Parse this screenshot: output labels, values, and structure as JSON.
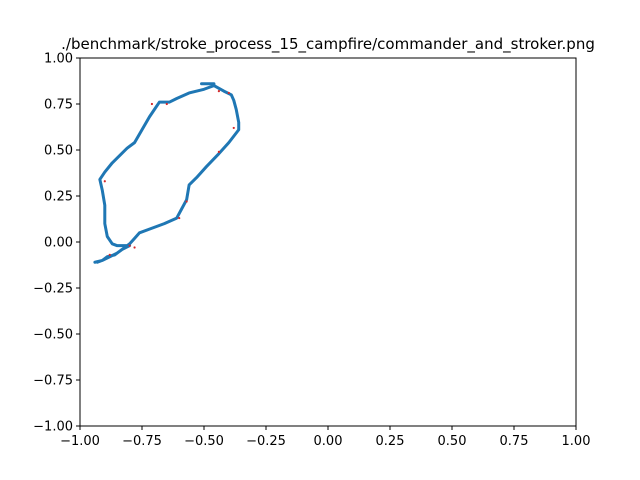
{
  "chart_data": {
    "type": "scatter",
    "title": "./benchmark/stroke_process_15_campfire/commander_and_stroker.png",
    "xlabel": "",
    "ylabel": "",
    "xlim": [
      -1.0,
      1.0
    ],
    "ylim": [
      -1.0,
      1.0
    ],
    "x_ticks": [
      "−1.00",
      "−0.75",
      "−0.50",
      "−0.25",
      "0.00",
      "0.25",
      "0.50",
      "0.75",
      "1.00"
    ],
    "y_ticks": [
      "−1.00",
      "−0.75",
      "−0.50",
      "−0.25",
      "0.00",
      "0.25",
      "0.50",
      "0.75",
      "1.00"
    ],
    "grid": false,
    "colors": {
      "stroke": "#1f77b4",
      "points": "#d62728"
    },
    "series": [
      {
        "kind": "line",
        "points": [
          [
            -0.94,
            -0.11
          ],
          [
            -0.91,
            -0.1
          ],
          [
            -0.89,
            -0.08
          ],
          [
            -0.86,
            -0.07
          ],
          [
            -0.84,
            -0.05
          ],
          [
            -0.82,
            -0.03
          ],
          [
            -0.8,
            -0.01
          ],
          [
            -0.78,
            0.02
          ],
          [
            -0.76,
            0.05
          ],
          [
            -0.72,
            0.07
          ],
          [
            -0.66,
            0.1
          ],
          [
            -0.61,
            0.13
          ],
          [
            -0.59,
            0.18
          ],
          [
            -0.57,
            0.23
          ],
          [
            -0.56,
            0.31
          ],
          [
            -0.53,
            0.35
          ],
          [
            -0.49,
            0.41
          ],
          [
            -0.44,
            0.48
          ],
          [
            -0.4,
            0.54
          ],
          [
            -0.36,
            0.61
          ],
          [
            -0.36,
            0.65
          ],
          [
            -0.37,
            0.72
          ],
          [
            -0.38,
            0.77
          ],
          [
            -0.39,
            0.8
          ],
          [
            -0.42,
            0.82
          ],
          [
            -0.46,
            0.85
          ],
          [
            -0.5,
            0.83
          ],
          [
            -0.56,
            0.81
          ],
          [
            -0.61,
            0.78
          ],
          [
            -0.64,
            0.76
          ],
          [
            -0.68,
            0.76
          ],
          [
            -0.7,
            0.72
          ],
          [
            -0.72,
            0.68
          ],
          [
            -0.75,
            0.61
          ],
          [
            -0.78,
            0.54
          ],
          [
            -0.81,
            0.51
          ],
          [
            -0.84,
            0.47
          ],
          [
            -0.87,
            0.43
          ],
          [
            -0.9,
            0.38
          ],
          [
            -0.92,
            0.34
          ],
          [
            -0.91,
            0.28
          ],
          [
            -0.9,
            0.2
          ],
          [
            -0.9,
            0.1
          ],
          [
            -0.89,
            0.03
          ],
          [
            -0.87,
            -0.01
          ],
          [
            -0.85,
            -0.02
          ],
          [
            -0.82,
            -0.02
          ],
          [
            -0.8,
            -0.02
          ],
          [
            -0.83,
            -0.04
          ],
          [
            -0.85,
            -0.06
          ],
          [
            -0.88,
            -0.08
          ],
          [
            -0.91,
            -0.1
          ],
          [
            -0.93,
            -0.11
          ]
        ]
      },
      {
        "kind": "line",
        "points": [
          [
            -0.51,
            0.86
          ],
          [
            -0.46,
            0.86
          ],
          [
            -0.46,
            0.85
          ]
        ]
      },
      {
        "kind": "scatter",
        "points": [
          [
            -0.71,
            0.75
          ],
          [
            -0.65,
            0.75
          ],
          [
            -0.44,
            0.82
          ],
          [
            -0.4,
            0.81
          ],
          [
            -0.57,
            0.22
          ],
          [
            -0.44,
            0.49
          ],
          [
            -0.8,
            -0.02
          ],
          [
            -0.78,
            -0.03
          ],
          [
            -0.88,
            -0.07
          ],
          [
            -0.6,
            0.13
          ],
          [
            -0.38,
            0.62
          ],
          [
            -0.9,
            0.33
          ]
        ]
      }
    ]
  }
}
